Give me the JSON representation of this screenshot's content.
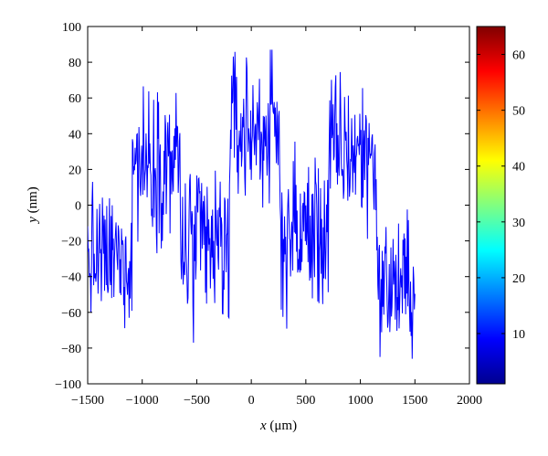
{
  "chart_data": {
    "type": "line",
    "xlabel_var": "x",
    "xlabel_unit": "(μm)",
    "ylabel_var": "y",
    "ylabel_unit": "(nm)",
    "xlim": [
      -1500,
      2000
    ],
    "ylim": [
      -100,
      100
    ],
    "xticks": [
      -1500,
      -1000,
      -500,
      0,
      500,
      1000,
      1500,
      2000
    ],
    "yticks": [
      -100,
      -80,
      -60,
      -40,
      -20,
      0,
      20,
      40,
      60,
      80,
      100
    ],
    "series": [
      {
        "color": "#0000ff",
        "x_range": [
          -1500,
          1500
        ],
        "step": 5,
        "plateaus": [
          {
            "x_start": -1500,
            "x_end": -1090,
            "mean": -30,
            "noise": 28
          },
          {
            "x_start": -1090,
            "x_end": -650,
            "mean": 25,
            "noise": 32
          },
          {
            "x_start": -650,
            "x_end": -200,
            "mean": -25,
            "noise": 38
          },
          {
            "x_start": -200,
            "x_end": 260,
            "mean": 42,
            "noise": 32
          },
          {
            "x_start": 260,
            "x_end": 710,
            "mean": -15,
            "noise": 35
          },
          {
            "x_start": 710,
            "x_end": 1150,
            "mean": 30,
            "noise": 32
          },
          {
            "x_start": 1150,
            "x_end": 1500,
            "mean": -45,
            "noise": 28
          }
        ],
        "observed_min": -90,
        "observed_max": 87
      }
    ],
    "colorbar": {
      "colormap": "jet",
      "range": [
        1,
        65
      ],
      "ticks": [
        10,
        20,
        30,
        40,
        50,
        60
      ]
    },
    "grid": false,
    "legend": "none"
  }
}
